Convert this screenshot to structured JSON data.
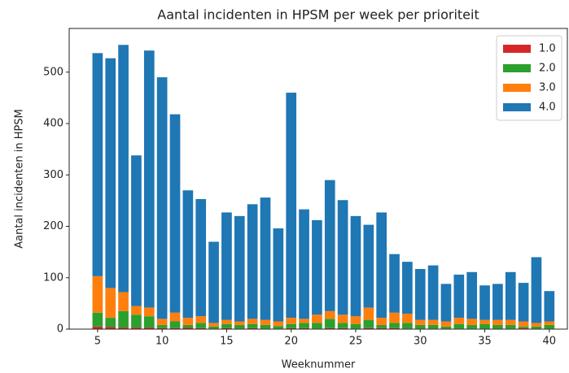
{
  "chart_data": {
    "type": "bar",
    "stacked": true,
    "title": "Aantal incidenten in HPSM per week per prioriteit",
    "x_label": "Weeknummer",
    "y_label": "Aantal incidenten in HPSM",
    "x": [
      5,
      6,
      7,
      8,
      9,
      10,
      11,
      12,
      13,
      14,
      15,
      16,
      17,
      18,
      19,
      20,
      21,
      22,
      23,
      24,
      25,
      26,
      27,
      28,
      29,
      30,
      31,
      32,
      33,
      34,
      35,
      36,
      37,
      38,
      39,
      40
    ],
    "series": [
      {
        "name": "1.0",
        "color": "#d62728",
        "values": [
          5,
          4,
          3,
          3,
          3,
          2,
          2,
          3,
          2,
          1,
          2,
          1,
          2,
          1,
          1,
          2,
          2,
          1,
          2,
          2,
          1,
          2,
          2,
          2,
          1,
          1,
          1,
          1,
          1,
          1,
          1,
          1,
          1,
          2,
          1,
          1
        ]
      },
      {
        "name": "2.0",
        "color": "#2ca02c",
        "values": [
          27,
          18,
          32,
          25,
          22,
          6,
          13,
          5,
          10,
          4,
          8,
          7,
          8,
          7,
          5,
          8,
          10,
          11,
          18,
          10,
          9,
          16,
          6,
          10,
          11,
          7,
          7,
          4,
          9,
          7,
          9,
          7,
          7,
          3,
          4,
          7
        ]
      },
      {
        "name": "3.0",
        "color": "#ff7f0e",
        "values": [
          71,
          58,
          37,
          17,
          17,
          12,
          17,
          14,
          13,
          7,
          8,
          7,
          10,
          10,
          9,
          12,
          8,
          16,
          15,
          16,
          15,
          24,
          14,
          20,
          18,
          10,
          10,
          10,
          12,
          12,
          8,
          10,
          10,
          10,
          7,
          7
        ]
      },
      {
        "name": "4.0",
        "color": "#1f77b4",
        "values": [
          434,
          447,
          481,
          293,
          500,
          470,
          386,
          248,
          228,
          158,
          209,
          205,
          223,
          238,
          181,
          438,
          213,
          184,
          255,
          223,
          195,
          161,
          205,
          114,
          101,
          99,
          106,
          73,
          84,
          91,
          67,
          70,
          93,
          75,
          128,
          59
        ]
      }
    ],
    "xlim": [
      2.8,
      41.4
    ],
    "xticks": [
      5,
      10,
      15,
      20,
      25,
      30,
      35,
      40
    ],
    "ylim": [
      0,
      585
    ],
    "yticks": [
      0,
      100,
      200,
      300,
      400,
      500
    ],
    "bar_width": 0.8,
    "legend": "upper right"
  }
}
